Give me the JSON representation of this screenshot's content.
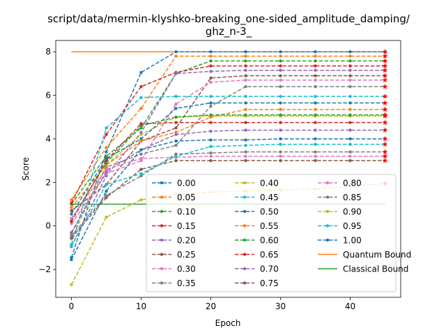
{
  "chart_data": {
    "type": "line",
    "title_line1": "script/data/mermin-klyshko-breaking_one-sided_amplitude_damping/",
    "title_line2": "ghz_n-3_",
    "xlabel": "Epoch",
    "ylabel": "Score",
    "xlim": [
      -2.25,
      47.25
    ],
    "ylim": [
      -3.28,
      8.52
    ],
    "x_ticks": [
      0,
      10,
      20,
      30,
      40
    ],
    "y_ticks": [
      -2,
      0,
      2,
      4,
      6,
      8
    ],
    "x": [
      0,
      5,
      10,
      15,
      20,
      25,
      30,
      35,
      40,
      45
    ],
    "grid": false,
    "legend_position": "lower-right",
    "legend_columns": 3,
    "series": [
      {
        "name": "0.00",
        "color": "#1f77b4",
        "values": [
          -1.45,
          3.4,
          7.05,
          8.0,
          8.0,
          8.0,
          8.0,
          8.0,
          8.0,
          8.0
        ]
      },
      {
        "name": "0.05",
        "color": "#ff7f0e",
        "values": [
          1.2,
          3.6,
          5.4,
          7.8,
          7.8,
          7.8,
          7.8,
          7.8,
          7.8,
          7.8
        ]
      },
      {
        "name": "0.10",
        "color": "#2ca02c",
        "values": [
          1.0,
          3.2,
          4.5,
          7.0,
          7.58,
          7.58,
          7.58,
          7.58,
          7.58,
          7.58
        ]
      },
      {
        "name": "0.15",
        "color": "#d62728",
        "values": [
          1.05,
          4.2,
          6.4,
          7.05,
          7.35,
          7.35,
          7.35,
          7.35,
          7.35,
          7.35
        ]
      },
      {
        "name": "0.20",
        "color": "#9467bd",
        "values": [
          -0.95,
          2.3,
          4.3,
          7.0,
          7.1,
          7.15,
          7.15,
          7.15,
          7.15,
          7.15
        ]
      },
      {
        "name": "0.25",
        "color": "#8c564b",
        "values": [
          0.7,
          1.9,
          3.9,
          4.5,
          6.8,
          6.9,
          6.9,
          6.9,
          6.9,
          6.9
        ]
      },
      {
        "name": "0.30",
        "color": "#e377c2",
        "values": [
          0.1,
          2.4,
          3.0,
          5.6,
          6.6,
          6.7,
          6.7,
          6.7,
          6.7,
          6.7
        ]
      },
      {
        "name": "0.35",
        "color": "#7f7f7f",
        "values": [
          -0.35,
          2.7,
          3.3,
          3.7,
          5.5,
          6.4,
          6.4,
          6.4,
          6.4,
          6.4
        ]
      },
      {
        "name": "0.40",
        "color": "#bcbd22",
        "values": [
          -0.6,
          2.8,
          4.2,
          5.0,
          5.05,
          5.05,
          5.05,
          5.05,
          5.05,
          5.05
        ]
      },
      {
        "name": "0.45",
        "color": "#17becf",
        "values": [
          -0.85,
          4.5,
          5.9,
          5.95,
          5.95,
          5.95,
          5.95,
          5.95,
          5.95,
          5.95
        ]
      },
      {
        "name": "0.50",
        "color": "#1f77b4",
        "values": [
          0.55,
          3.1,
          4.0,
          5.4,
          5.65,
          5.65,
          5.65,
          5.65,
          5.65,
          5.65
        ]
      },
      {
        "name": "0.55",
        "color": "#ff7f0e",
        "values": [
          0.85,
          2.8,
          3.9,
          4.3,
          5.0,
          5.35,
          5.35,
          5.35,
          5.35,
          5.35
        ]
      },
      {
        "name": "0.60",
        "color": "#2ca02c",
        "values": [
          0.3,
          2.9,
          4.6,
          5.0,
          5.1,
          5.1,
          5.1,
          5.1,
          5.1,
          5.1
        ]
      },
      {
        "name": "0.65",
        "color": "#d62728",
        "values": [
          0.2,
          3.0,
          4.7,
          4.75,
          4.75,
          4.75,
          4.75,
          4.75,
          4.75,
          4.75
        ]
      },
      {
        "name": "0.70",
        "color": "#9467bd",
        "values": [
          -0.3,
          2.5,
          3.5,
          4.2,
          4.35,
          4.4,
          4.4,
          4.4,
          4.4,
          4.4
        ]
      },
      {
        "name": "0.75",
        "color": "#8c564b",
        "values": [
          -0.55,
          1.3,
          2.6,
          3.0,
          3.0,
          3.0,
          3.0,
          3.0,
          3.0,
          3.0
        ]
      },
      {
        "name": "0.80",
        "color": "#e377c2",
        "values": [
          0.35,
          2.6,
          3.1,
          3.15,
          3.2,
          3.2,
          3.2,
          3.2,
          3.2,
          3.2
        ]
      },
      {
        "name": "0.85",
        "color": "#7f7f7f",
        "values": [
          -0.45,
          1.4,
          2.3,
          3.3,
          3.35,
          3.4,
          3.4,
          3.4,
          3.4,
          3.4
        ]
      },
      {
        "name": "0.90",
        "color": "#bcbd22",
        "values": [
          -2.7,
          0.4,
          1.2,
          1.45,
          1.55,
          1.6,
          1.65,
          1.7,
          1.82,
          1.95
        ]
      },
      {
        "name": "0.95",
        "color": "#17becf",
        "values": [
          -0.9,
          1.9,
          2.4,
          3.2,
          3.65,
          3.7,
          3.75,
          3.75,
          3.75,
          3.75
        ]
      },
      {
        "name": "1.00",
        "color": "#1f77b4",
        "values": [
          -1.55,
          1.6,
          3.5,
          3.9,
          3.95,
          3.95,
          4.0,
          4.0,
          4.0,
          4.0
        ]
      }
    ],
    "bounds": [
      {
        "name": "Quantum Bound",
        "color": "#ff7f0e",
        "value": 8.0
      },
      {
        "name": "Classical Bound",
        "color": "#2ca02c",
        "value": 1.0
      }
    ]
  }
}
